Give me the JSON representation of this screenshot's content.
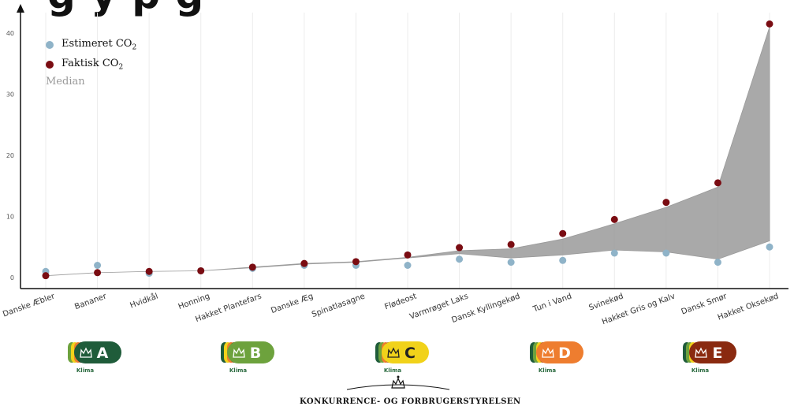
{
  "header": {
    "cut_title": "g y   p g"
  },
  "chart_data": {
    "type": "scatter",
    "title": "",
    "xlabel": "",
    "ylabel": "",
    "ylim": [
      -1,
      43
    ],
    "yticks": [
      0,
      10,
      20,
      30,
      40
    ],
    "grid": "vertical",
    "legend_placement": "top-left",
    "categories": [
      "Danske Æbler",
      "Bananer",
      "Hvidkål",
      "Honning",
      "Hakket Plantefars",
      "Danske Æg",
      "Spinatlasagne",
      "Flødeost",
      "Varmrøget Laks",
      "Dansk Kyllingekød",
      "Tun i Vand",
      "Svinekød",
      "Hakket Gris og Kalv",
      "Dansk Smør",
      "Hakket Oksekød"
    ],
    "series": [
      {
        "name": "Estimeret CO₂",
        "color": "#8fb3c8",
        "values": [
          1.0,
          2.0,
          0.7,
          1.1,
          1.5,
          2.0,
          2.0,
          2.0,
          3.0,
          2.5,
          2.8,
          4.0,
          4.0,
          2.5,
          5.0
        ]
      },
      {
        "name": "Faktisk CO₂",
        "color": "#7a0c12",
        "values": [
          0.3,
          0.8,
          1.0,
          1.1,
          1.7,
          2.3,
          2.6,
          3.7,
          4.9,
          5.4,
          7.2,
          9.5,
          12.3,
          15.5,
          41.5
        ]
      }
    ],
    "band": {
      "label": "Median",
      "color": "#9a9a9a",
      "upper": [
        0.3,
        0.8,
        1.0,
        1.1,
        1.7,
        2.3,
        2.6,
        3.3,
        4.4,
        4.7,
        6.3,
        8.8,
        11.5,
        14.8,
        41.0
      ],
      "lower": [
        0.3,
        0.8,
        1.0,
        1.1,
        1.6,
        2.2,
        2.5,
        3.2,
        3.9,
        3.2,
        3.7,
        4.5,
        4.2,
        3.0,
        6.0
      ]
    },
    "legend": {
      "estimated": "Estimeret CO",
      "actual": "Faktisk CO",
      "subscript": "2",
      "median": "Median"
    }
  },
  "badges": [
    {
      "letter": "A",
      "label": "Klima",
      "color": "#1f5c3a",
      "crown": "crown-icon"
    },
    {
      "letter": "B",
      "label": "Klima",
      "color": "#6da23d",
      "crown": "crown-icon"
    },
    {
      "letter": "C",
      "label": "Klima",
      "color": "#f1d21a",
      "crown": "crown-icon"
    },
    {
      "letter": "D",
      "label": "Klima",
      "color": "#ee7d2f",
      "crown": "crown-icon"
    },
    {
      "letter": "E",
      "label": "Klima",
      "color": "#8a2a10",
      "crown": "crown-icon"
    }
  ],
  "footer": {
    "org": "KONKURRENCE- OG FORBRUGERSTYRELSEN"
  }
}
